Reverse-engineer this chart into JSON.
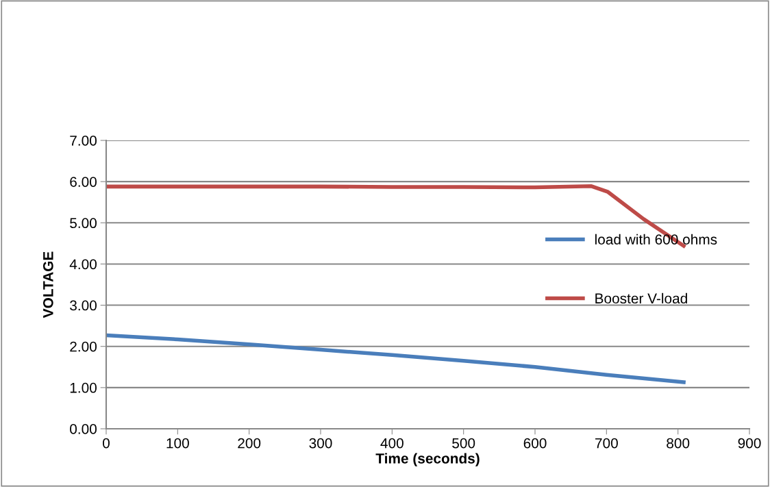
{
  "chart_data": {
    "type": "line",
    "xlabel": "Time (seconds)",
    "ylabel": "VOLTAGE",
    "xlim": [
      0,
      900
    ],
    "xticks": [
      0,
      100,
      200,
      300,
      400,
      500,
      600,
      700,
      800,
      900
    ],
    "ylim": [
      0,
      7
    ],
    "yticks": [
      {
        "value": 0,
        "label": "0.00"
      },
      {
        "value": 1,
        "label": "1.00"
      },
      {
        "value": 2,
        "label": "2.00"
      },
      {
        "value": 3,
        "label": "3.00"
      },
      {
        "value": 4,
        "label": "4.00"
      },
      {
        "value": 5,
        "label": "5.00"
      },
      {
        "value": 6,
        "label": "6.00"
      },
      {
        "value": 7,
        "label": "7.00"
      }
    ],
    "grid": "y",
    "legend": "right",
    "marker": "none",
    "line_style": "solid",
    "series": [
      {
        "name": "load with 600 ohms",
        "color": "#4a7ebb",
        "x": [
          0,
          100,
          200,
          300,
          400,
          500,
          600,
          700,
          808
        ],
        "values": [
          2.27,
          2.17,
          2.05,
          1.92,
          1.79,
          1.65,
          1.5,
          1.31,
          1.13
        ]
      },
      {
        "name": "Booster V-load",
        "color": "#be4b48",
        "x": [
          0,
          100,
          200,
          300,
          400,
          500,
          600,
          679,
          702,
          752,
          808
        ],
        "values": [
          5.88,
          5.88,
          5.88,
          5.88,
          5.87,
          5.87,
          5.86,
          5.89,
          5.75,
          5.09,
          4.44
        ]
      }
    ]
  }
}
